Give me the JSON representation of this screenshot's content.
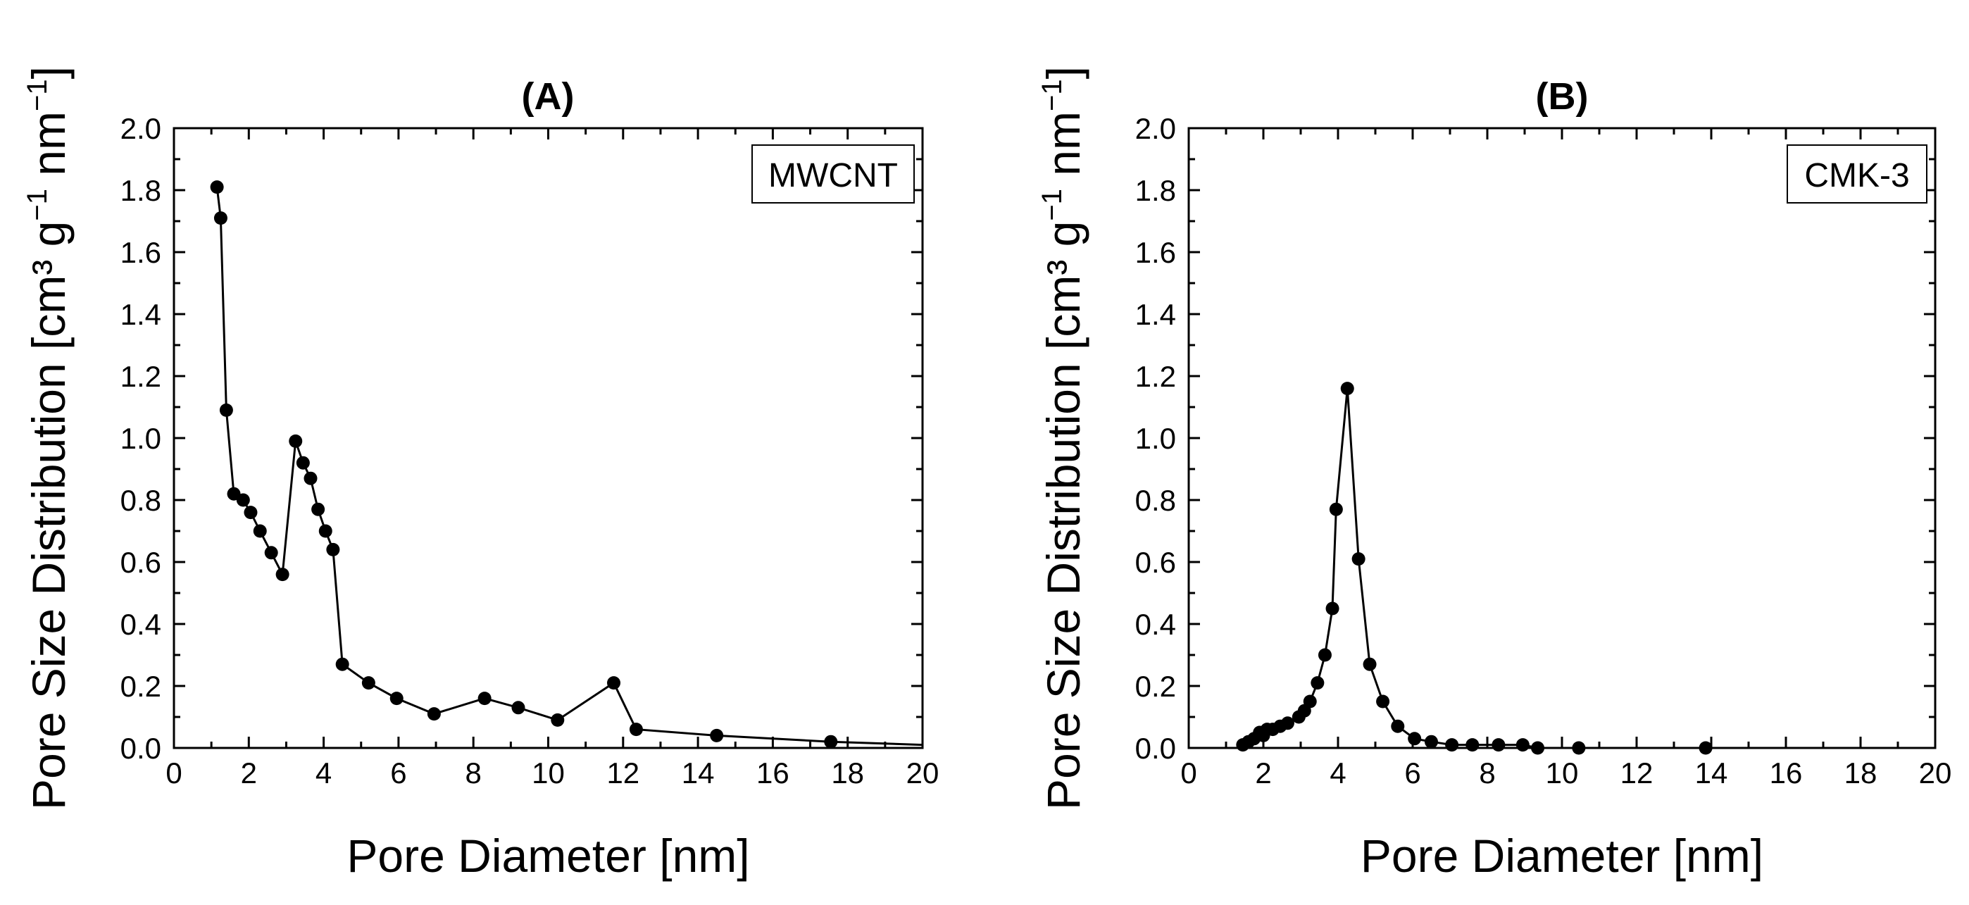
{
  "chart_data": [
    {
      "type": "line",
      "title": "(A)",
      "xlabel": "Pore Diameter [nm]",
      "ylabel": "Pore Size Distribution [cm³ g⁻¹ nm⁻¹]",
      "ylabel_parts": {
        "pre": "Pore Size Distribution [cm³ g",
        "exp1": "−1",
        "mid": " nm",
        "exp2": "−1",
        "post": "]"
      },
      "xlim": [
        0,
        20
      ],
      "ylim": [
        0,
        2.0
      ],
      "xticks": [
        0,
        2,
        4,
        6,
        8,
        10,
        12,
        14,
        16,
        18,
        20
      ],
      "yticks": [
        0.0,
        0.2,
        0.4,
        0.6,
        0.8,
        1.0,
        1.2,
        1.4,
        1.6,
        1.8,
        2.0
      ],
      "xtick_labels": [
        "0",
        "2",
        "4",
        "6",
        "8",
        "10",
        "12",
        "14",
        "16",
        "18",
        "20"
      ],
      "ytick_labels": [
        "0.0",
        "0.2",
        "0.4",
        "0.6",
        "0.8",
        "1.0",
        "1.2",
        "1.4",
        "1.6",
        "1.8",
        "2.0"
      ],
      "legend": "MWCNT",
      "legend_position": "top-right",
      "grid": false,
      "series": [
        {
          "name": "MWCNT",
          "x": [
            1.15,
            1.25,
            1.4,
            1.6,
            1.85,
            2.05,
            2.3,
            2.6,
            2.9,
            3.25,
            3.45,
            3.65,
            3.85,
            4.05,
            4.25,
            4.5,
            5.2,
            5.95,
            6.95,
            8.3,
            9.2,
            10.25,
            11.75,
            12.35,
            14.5,
            17.55
          ],
          "y": [
            1.81,
            1.71,
            1.09,
            0.82,
            0.8,
            0.76,
            0.7,
            0.63,
            0.56,
            0.99,
            0.92,
            0.87,
            0.77,
            0.7,
            0.64,
            0.27,
            0.21,
            0.16,
            0.11,
            0.16,
            0.13,
            0.09,
            0.21,
            0.06,
            0.04,
            0.02
          ],
          "line_end": [
            20,
            0.01
          ]
        }
      ]
    },
    {
      "type": "line",
      "title": "(B)",
      "xlabel": "Pore Diameter [nm]",
      "ylabel": "Pore Size Distribution [cm³ g⁻¹ nm⁻¹]",
      "ylabel_parts": {
        "pre": "Pore Size Distribution [cm³ g",
        "exp1": "−1",
        "mid": " nm",
        "exp2": "−1",
        "post": "]"
      },
      "xlim": [
        0,
        20
      ],
      "ylim": [
        0,
        2.0
      ],
      "xticks": [
        0,
        2,
        4,
        6,
        8,
        10,
        12,
        14,
        16,
        18,
        20
      ],
      "yticks": [
        0.0,
        0.2,
        0.4,
        0.6,
        0.8,
        1.0,
        1.2,
        1.4,
        1.6,
        1.8,
        2.0
      ],
      "xtick_labels": [
        "0",
        "2",
        "4",
        "6",
        "8",
        "10",
        "12",
        "14",
        "16",
        "18",
        "20"
      ],
      "ytick_labels": [
        "0.0",
        "0.2",
        "0.4",
        "0.6",
        "0.8",
        "1.0",
        "1.2",
        "1.4",
        "1.6",
        "1.8",
        "2.0"
      ],
      "legend": "CMK-3",
      "legend_position": "top-right",
      "grid": false,
      "series": [
        {
          "name": "CMK-3",
          "x": [
            1.45,
            1.6,
            1.75,
            1.9,
            2.0,
            2.1,
            2.25,
            2.45,
            2.65,
            2.95,
            3.1,
            3.25,
            3.45,
            3.65,
            3.85,
            3.95,
            4.25,
            4.55,
            4.85,
            5.2,
            5.6,
            6.05,
            6.5,
            7.05,
            7.6,
            8.3,
            8.95,
            9.35,
            10.45,
            13.85
          ],
          "y": [
            0.01,
            0.02,
            0.03,
            0.05,
            0.04,
            0.06,
            0.06,
            0.07,
            0.08,
            0.1,
            0.12,
            0.15,
            0.21,
            0.3,
            0.45,
            0.77,
            1.16,
            0.61,
            0.27,
            0.15,
            0.07,
            0.03,
            0.02,
            0.01,
            0.01,
            0.01,
            0.01,
            0.0,
            0.0,
            0.0
          ],
          "line_end": [
            20,
            0.0
          ]
        }
      ]
    }
  ]
}
